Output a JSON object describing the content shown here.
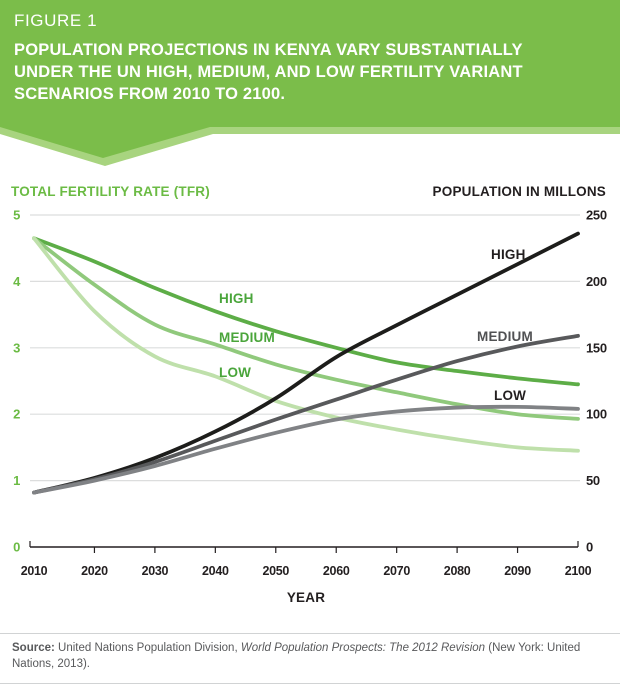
{
  "banner": {
    "kicker": "FIGURE 1",
    "title_lines": [
      "POPULATION PROJECTIONS IN KENYA VARY SUBSTANTIALLY",
      "UNDER THE UN HIGH, MEDIUM, AND LOW FERTILITY VARIANT",
      "SCENARIOS FROM 2010 TO 2100."
    ],
    "bg_color": "#7bbd4a",
    "accent_color": "#a8d47f"
  },
  "chart_data": {
    "type": "line",
    "x": [
      2010,
      2020,
      2030,
      2040,
      2050,
      2060,
      2070,
      2080,
      2090,
      2100
    ],
    "xlabel": "YEAR",
    "grid": true,
    "left_axis": {
      "title": "TOTAL FERTILITY RATE (TFR)",
      "range": [
        0,
        5
      ],
      "ticks": [
        0,
        1,
        2,
        3,
        4,
        5
      ],
      "color": "#6bbb44"
    },
    "right_axis": {
      "title": "POPULATION IN MILLONS",
      "range": [
        0,
        250
      ],
      "ticks": [
        0,
        50,
        100,
        150,
        200,
        250
      ],
      "color": "#231f20"
    },
    "series": [
      {
        "id": "tfr-high",
        "name": "TFR High Variant",
        "label": "HIGH",
        "axis": "left",
        "color": "#5dad47",
        "label_color": "#4aa53b",
        "label_pos": [
          219,
          133
        ],
        "values": [
          4.65,
          4.3,
          3.9,
          3.55,
          3.25,
          3.0,
          2.78,
          2.65,
          2.54,
          2.45
        ]
      },
      {
        "id": "tfr-medium",
        "name": "TFR Medium Variant",
        "label": "MEDIUM",
        "axis": "left",
        "color": "#90c97c",
        "label_color": "#4aa53b",
        "label_pos": [
          219,
          172
        ],
        "values": [
          4.65,
          3.95,
          3.35,
          3.05,
          2.75,
          2.52,
          2.33,
          2.15,
          2.0,
          1.93
        ]
      },
      {
        "id": "tfr-low",
        "name": "TFR Low Variant",
        "label": "LOW",
        "axis": "left",
        "color": "#bfe0ab",
        "label_color": "#4aa53b",
        "label_pos": [
          219,
          207
        ],
        "values": [
          4.65,
          3.55,
          2.87,
          2.57,
          2.2,
          1.95,
          1.77,
          1.62,
          1.5,
          1.45
        ]
      },
      {
        "id": "pop-high",
        "name": "Population High Variant",
        "label": "HIGH",
        "axis": "right",
        "color": "#1d1d1b",
        "label_color": "#231f20",
        "label_pos": [
          491,
          89
        ],
        "values": [
          41,
          52,
          67,
          87,
          112,
          143,
          167,
          190,
          213,
          236
        ]
      },
      {
        "id": "pop-medium",
        "name": "Population Medium Variant",
        "label": "MEDIUM",
        "axis": "right",
        "color": "#58595b",
        "label_color": "#505153",
        "label_pos": [
          477,
          171
        ],
        "values": [
          41,
          51,
          64,
          80,
          96,
          111,
          126,
          140,
          151,
          159
        ]
      },
      {
        "id": "pop-low",
        "name": "Population Low Variant",
        "label": "LOW",
        "axis": "right",
        "color": "#808285",
        "label_color": "#231f20",
        "label_pos": [
          494,
          230
        ],
        "values": [
          41,
          50,
          61,
          74,
          86,
          96,
          102,
          105,
          105.5,
          104
        ]
      }
    ],
    "colors": {
      "gridline": "#dcdddd",
      "axis": "#231f20"
    }
  },
  "footer": {
    "source_label": "Source:",
    "text_before_italic": " United Nations Population Division, ",
    "italic_text": "World Population Prospects: The 2012 Revision",
    "text_after_italic": " (New York: United Nations, 2013)."
  }
}
